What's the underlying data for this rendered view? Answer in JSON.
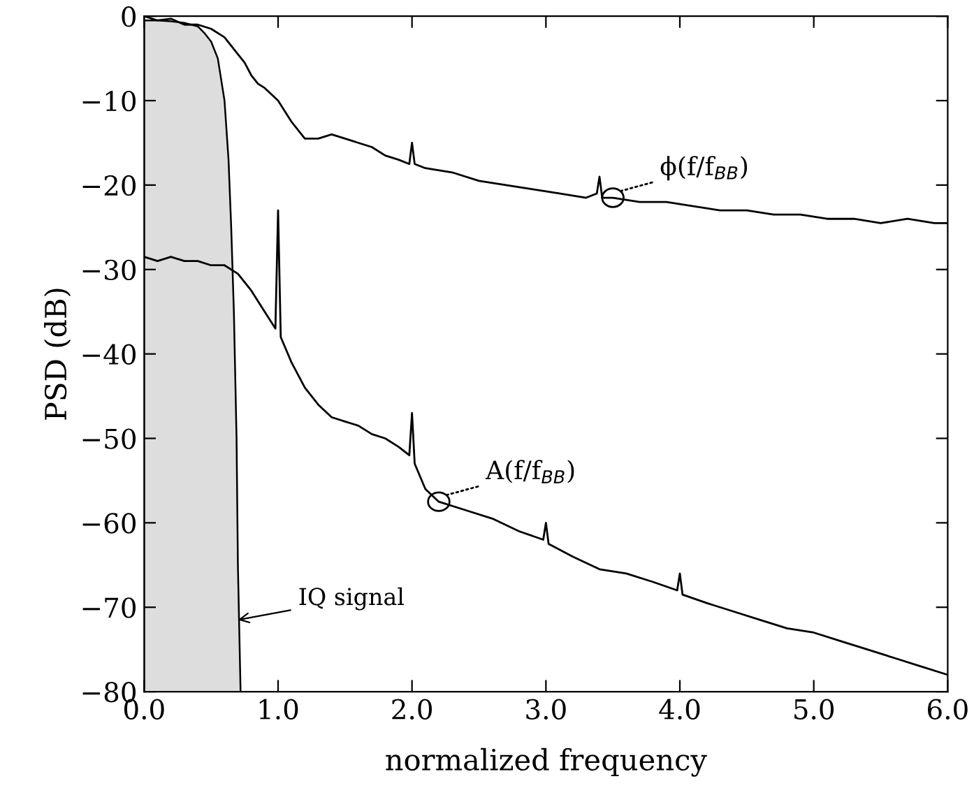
{
  "chart_data": {
    "type": "line",
    "xlabel": "normalized frequency",
    "ylabel": "PSD (dB)",
    "xlim": [
      0,
      6
    ],
    "ylim": [
      -80,
      0
    ],
    "xticks": [
      {
        "value": 0,
        "label": "0.0"
      },
      {
        "value": 1,
        "label": "1.0"
      },
      {
        "value": 2,
        "label": "2.0"
      },
      {
        "value": 3,
        "label": "3.0"
      },
      {
        "value": 4,
        "label": "4.0"
      },
      {
        "value": 5,
        "label": "5.0"
      },
      {
        "value": 6,
        "label": "6.0"
      }
    ],
    "yticks": [
      0,
      {
        "value": -10,
        "label": "−10"
      },
      {
        "value": -20,
        "label": "−20"
      },
      {
        "value": -30,
        "label": "−30"
      },
      {
        "value": -40,
        "label": "−40"
      },
      {
        "value": -50,
        "label": "−50"
      },
      {
        "value": -60,
        "label": "−60"
      },
      {
        "value": -70,
        "label": "−70"
      },
      {
        "value": -80,
        "label": "−80"
      }
    ],
    "grid": false,
    "legend": false,
    "series": [
      {
        "type": "area",
        "color": "#dddddd",
        "x": [
          0,
          0,
          0.1,
          0.2,
          0.3,
          0.4,
          0.45,
          0.5,
          0.55,
          0.6,
          0.63,
          0.65,
          0.67,
          0.69,
          0.7,
          0.72
        ],
        "values": [
          -80,
          -0.5,
          -0.5,
          -0.6,
          -0.8,
          -1.2,
          -2,
          -3,
          -5,
          -10,
          -17,
          -25,
          -35,
          -50,
          -65,
          -80
        ]
      },
      {
        "color": "#000000",
        "x": [
          0,
          0.1,
          0.2,
          0.3,
          0.4,
          0.5,
          0.6,
          0.7,
          0.75,
          0.8,
          0.85,
          0.9,
          1.0,
          1.1,
          1.2,
          1.3,
          1.4,
          1.5,
          1.6,
          1.7,
          1.8,
          1.9,
          1.98,
          2.0,
          2.02,
          2.1,
          2.3,
          2.5,
          2.7,
          2.9,
          3.1,
          3.3,
          3.38,
          3.4,
          3.42,
          3.5,
          3.7,
          3.9,
          4.1,
          4.3,
          4.5,
          4.7,
          4.9,
          5.1,
          5.3,
          5.5,
          5.7,
          5.9,
          6.0
        ],
        "values": [
          0,
          -0.5,
          -0.3,
          -1,
          -1,
          -1.5,
          -2.5,
          -4.5,
          -5.5,
          -7,
          -8,
          -8.5,
          -10,
          -12.5,
          -14.5,
          -14.5,
          -14,
          -14.5,
          -15,
          -15.5,
          -16.5,
          -17,
          -17.5,
          -15,
          -17.5,
          -18,
          -18.5,
          -19.5,
          -20,
          -20.5,
          -21,
          -21.5,
          -21,
          -19,
          -21.5,
          -21.5,
          -22,
          -22,
          -22.5,
          -23,
          -23,
          -23.5,
          -23.5,
          -24,
          -24,
          -24.5,
          -24,
          -24.5,
          -24.5
        ]
      },
      {
        "color": "#000000",
        "x": [
          0,
          0.1,
          0.2,
          0.3,
          0.4,
          0.5,
          0.6,
          0.7,
          0.8,
          0.9,
          0.98,
          1.0,
          1.02,
          1.1,
          1.2,
          1.3,
          1.4,
          1.5,
          1.6,
          1.7,
          1.8,
          1.9,
          1.98,
          2.0,
          2.02,
          2.1,
          2.2,
          2.4,
          2.6,
          2.8,
          2.98,
          3.0,
          3.02,
          3.2,
          3.4,
          3.6,
          3.8,
          3.98,
          4.0,
          4.02,
          4.2,
          4.4,
          4.6,
          4.8,
          5.0,
          5.2,
          5.4,
          5.6,
          5.8,
          6.0
        ],
        "values": [
          -28.5,
          -29,
          -28.5,
          -29,
          -29,
          -29.5,
          -29.5,
          -30.5,
          -32.5,
          -35,
          -37,
          -23,
          -38,
          -41,
          -44,
          -46,
          -47.5,
          -48,
          -48.5,
          -49.5,
          -50,
          -51,
          -52,
          -47,
          -53,
          -56,
          -57.5,
          -58.5,
          -59.5,
          -61,
          -62,
          -60,
          -62.5,
          -64,
          -65.5,
          -66,
          -67,
          -68,
          -66,
          -68.5,
          -69.5,
          -70.5,
          -71.5,
          -72.5,
          -73,
          -74,
          -75,
          -76,
          -77,
          -78
        ]
      }
    ],
    "annotations": [
      {
        "text": "ϕ(f/f$_{BB}$)",
        "x": 3.5,
        "y": -21.5
      },
      {
        "text": "A(f/f$_{BB}$)",
        "x": 2.2,
        "y": -57.5
      },
      {
        "text": "IQ signal",
        "x": 0.7,
        "y": -71.5
      }
    ]
  }
}
